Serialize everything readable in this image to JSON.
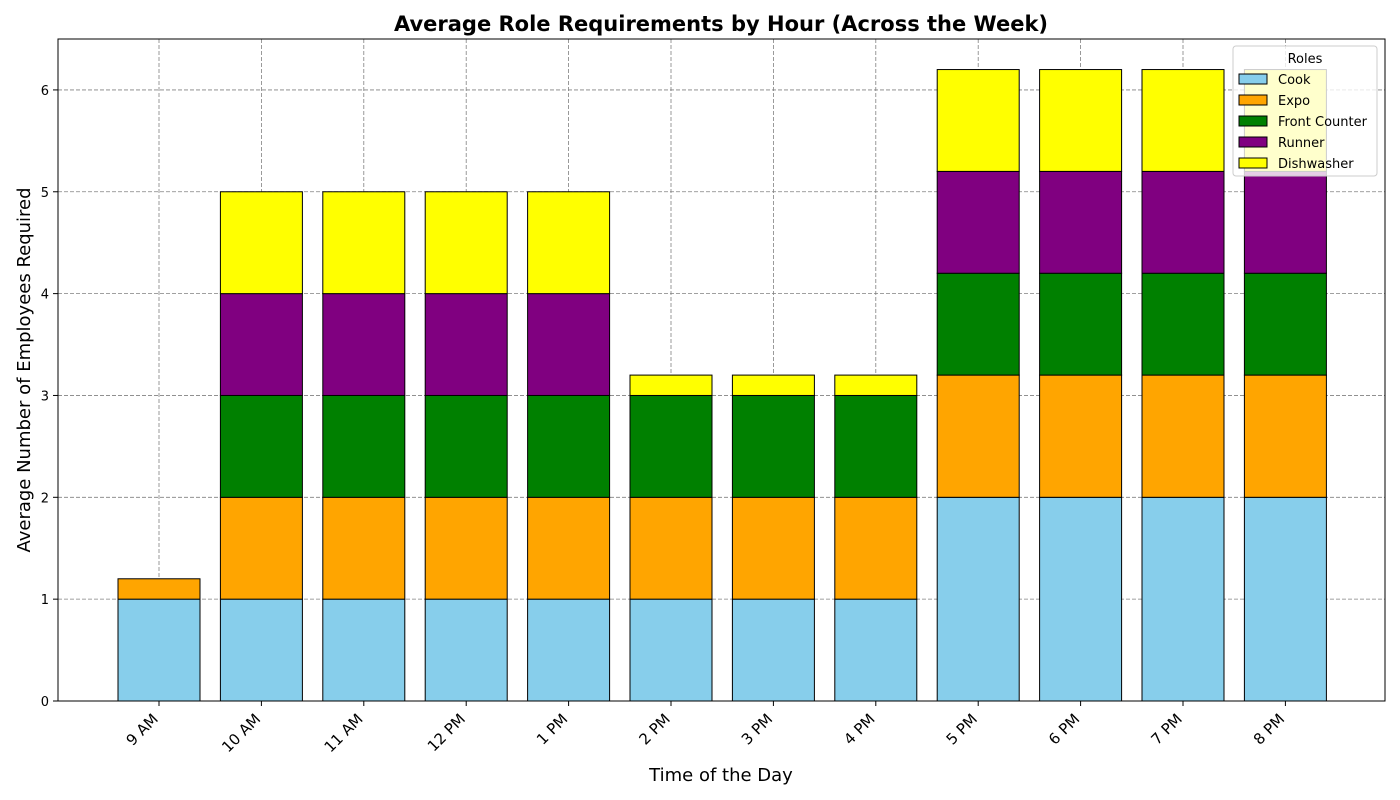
{
  "chart_data": {
    "type": "bar",
    "stacked": true,
    "title": "Average Role Requirements by Hour (Across the Week)",
    "xlabel": "Time of the Day",
    "ylabel": "Average Number of Employees Required",
    "categories": [
      "9 AM",
      "10 AM",
      "11 AM",
      "12 PM",
      "1 PM",
      "2 PM",
      "3 PM",
      "4 PM",
      "5 PM",
      "6 PM",
      "7 PM",
      "8 PM"
    ],
    "series": [
      {
        "name": "Cook",
        "color": "#87ceeb",
        "values": [
          1,
          1,
          1,
          1,
          1,
          1,
          1,
          1,
          2,
          2,
          2,
          2
        ]
      },
      {
        "name": "Expo",
        "color": "#ffa500",
        "values": [
          0.2,
          1,
          1,
          1,
          1,
          1,
          1,
          1,
          1.2,
          1.2,
          1.2,
          1.2
        ]
      },
      {
        "name": "Front Counter",
        "color": "#008000",
        "values": [
          0,
          1,
          1,
          1,
          1,
          1,
          1,
          1,
          1,
          1,
          1,
          1
        ]
      },
      {
        "name": "Runner",
        "color": "#800080",
        "values": [
          0,
          1,
          1,
          1,
          1,
          0,
          0,
          0,
          1,
          1,
          1,
          1
        ]
      },
      {
        "name": "Dishwasher",
        "color": "#ffff00",
        "values": [
          0,
          1,
          1,
          1,
          1,
          0.2,
          0.2,
          0.2,
          1,
          1,
          1,
          1
        ]
      }
    ],
    "ylim": [
      0,
      6.5
    ],
    "yticks": [
      0,
      1,
      2,
      3,
      4,
      5,
      6
    ],
    "grid": true,
    "legend": {
      "title": "Roles",
      "position": "top-right"
    }
  }
}
